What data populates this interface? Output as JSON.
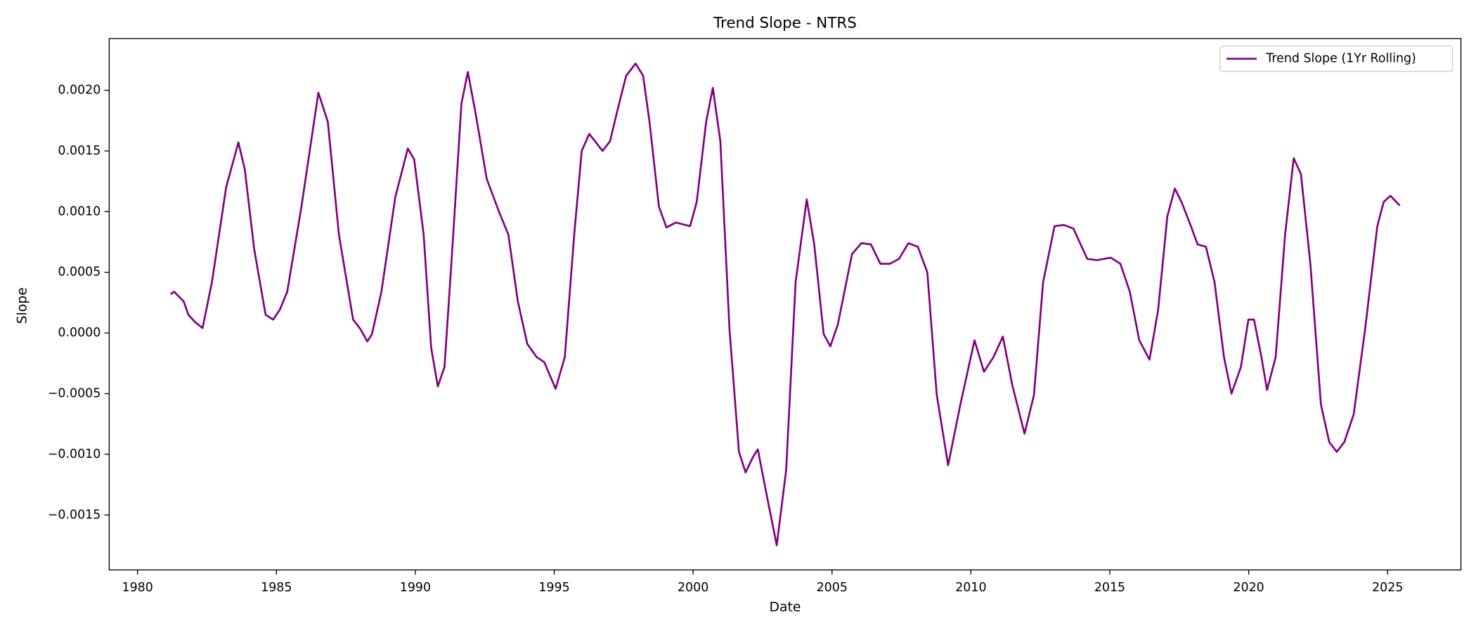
{
  "chart_data": {
    "type": "line",
    "title": "Trend Slope - NTRS",
    "x_label": "Date",
    "y_label": "Slope",
    "legend": "upper right",
    "grid": false,
    "x": [
      1981.19,
      1981.32,
      1981.66,
      1981.83,
      1982.07,
      1982.34,
      1982.68,
      1983.19,
      1983.63,
      1983.86,
      1984.2,
      1984.61,
      1984.88,
      1985.12,
      1985.39,
      1985.9,
      1986.51,
      1986.85,
      1987.25,
      1987.76,
      1988.03,
      1988.27,
      1988.44,
      1988.78,
      1989.28,
      1989.73,
      1989.96,
      1990.3,
      1990.57,
      1990.81,
      1991.05,
      1991.32,
      1991.66,
      1991.89,
      1992.17,
      1992.57,
      1993.01,
      1993.35,
      1993.69,
      1994.03,
      1994.37,
      1994.64,
      1995.05,
      1995.38,
      1995.72,
      1995.99,
      1996.26,
      1996.47,
      1996.74,
      1997.01,
      1997.25,
      1997.59,
      1997.93,
      1998.2,
      1998.43,
      1998.77,
      1999.04,
      1999.38,
      1999.89,
      2000.13,
      2000.47,
      2000.71,
      2000.98,
      2001.31,
      2001.65,
      2001.89,
      2002.16,
      2002.33,
      2002.67,
      2003.01,
      2003.35,
      2003.69,
      2004.09,
      2004.36,
      2004.7,
      2004.94,
      2005.21,
      2005.72,
      2006.06,
      2006.4,
      2006.74,
      2007.08,
      2007.41,
      2007.75,
      2008.09,
      2008.43,
      2008.77,
      2009.18,
      2009.62,
      2010.13,
      2010.47,
      2010.81,
      2011.15,
      2011.49,
      2011.93,
      2012.27,
      2012.6,
      2013.01,
      2013.35,
      2013.69,
      2014.19,
      2014.53,
      2015.04,
      2015.38,
      2015.72,
      2016.06,
      2016.43,
      2016.74,
      2017.07,
      2017.34,
      2017.58,
      2017.92,
      2018.16,
      2018.46,
      2018.77,
      2019.11,
      2019.38,
      2019.72,
      2019.99,
      2020.19,
      2020.46,
      2020.66,
      2020.97,
      2021.31,
      2021.62,
      2021.88,
      2022.22,
      2022.6,
      2022.9,
      2023.17,
      2023.44,
      2023.78,
      2024.19,
      2024.63,
      2024.86,
      2025.1,
      2025.44
    ],
    "series": [
      {
        "name": "Trend Slope (1Yr Rolling)",
        "color": "#800080",
        "values": [
          0.00032,
          0.00034,
          0.00026,
          0.00015,
          9e-05,
          4e-05,
          0.00042,
          0.0012,
          0.00157,
          0.00135,
          0.00069,
          0.00015,
          0.00011,
          0.00019,
          0.00034,
          0.00104,
          0.00198,
          0.00174,
          0.00081,
          0.00011,
          3e-05,
          -7e-05,
          -1e-05,
          0.00034,
          0.00112,
          0.00152,
          0.00143,
          0.00081,
          -0.00012,
          -0.00044,
          -0.00028,
          0.00065,
          0.00189,
          0.00215,
          0.00181,
          0.00127,
          0.001,
          0.00081,
          0.00026,
          -9e-05,
          -0.0002,
          -0.00024,
          -0.00046,
          -0.0002,
          0.00081,
          0.0015,
          0.00164,
          0.00158,
          0.0015,
          0.00158,
          0.00181,
          0.00212,
          0.00222,
          0.00212,
          0.00174,
          0.00104,
          0.00087,
          0.00091,
          0.00088,
          0.00108,
          0.00174,
          0.00202,
          0.00158,
          3e-05,
          -0.00098,
          -0.00115,
          -0.00102,
          -0.00096,
          -0.00136,
          -0.00175,
          -0.00113,
          0.00042,
          0.0011,
          0.00073,
          -1e-05,
          -0.00011,
          7e-05,
          0.00065,
          0.00074,
          0.00073,
          0.00057,
          0.00057,
          0.00061,
          0.00074,
          0.00071,
          0.0005,
          -0.00051,
          -0.00109,
          -0.00059,
          -6e-05,
          -0.00032,
          -0.0002,
          -3e-05,
          -0.00043,
          -0.00083,
          -0.00051,
          0.00042,
          0.00088,
          0.00089,
          0.00086,
          0.00061,
          0.0006,
          0.00062,
          0.00057,
          0.00034,
          -6e-05,
          -0.00022,
          0.00019,
          0.00096,
          0.00119,
          0.00108,
          0.00088,
          0.00073,
          0.00071,
          0.00042,
          -0.0002,
          -0.0005,
          -0.00028,
          0.00011,
          0.00011,
          -0.0002,
          -0.00047,
          -0.0002,
          0.00081,
          0.00144,
          0.00131,
          0.00057,
          -0.00059,
          -0.0009,
          -0.00098,
          -0.0009,
          -0.00067,
          3e-05,
          0.00088,
          0.00108,
          0.00113,
          0.00105
        ]
      }
    ],
    "xlim": [
      1978.98,
      2027.64
    ],
    "ylim": [
      -0.001953,
      0.002426
    ],
    "xticks": [
      1980,
      1985,
      1990,
      1995,
      2000,
      2005,
      2010,
      2015,
      2020,
      2025
    ],
    "yticks": [
      {
        "value": -0.0015,
        "label": "−0.0015"
      },
      {
        "value": -0.001,
        "label": "−0.0010"
      },
      {
        "value": -0.0005,
        "label": "−0.0005"
      },
      {
        "value": 0,
        "label": "0.0000"
      },
      {
        "value": 0.0005,
        "label": "0.0005"
      },
      {
        "value": 0.001,
        "label": "0.0010"
      },
      {
        "value": 0.0015,
        "label": "0.0015"
      },
      {
        "value": 0.002,
        "label": "0.0020"
      }
    ]
  }
}
